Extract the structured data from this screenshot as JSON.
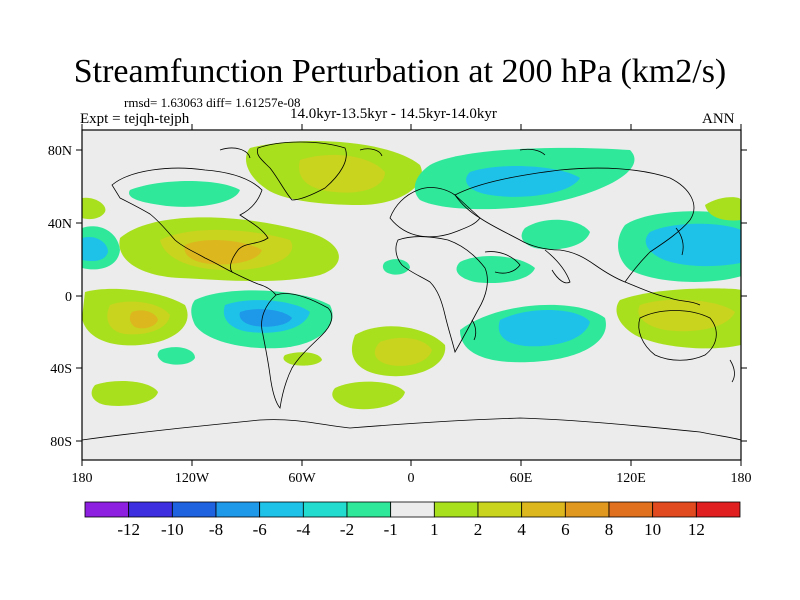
{
  "title": "Streamfunction Perturbation at 200 hPa (km2/s)",
  "stats": "rmsd= 1.63063 diff= 1.61257e-08",
  "expt": "Expt = tejqh-tejph",
  "period": "14.0kyr-13.5kyr - 14.5kyr-14.0kyr",
  "season": "ANN",
  "axes": {
    "lat_ticks": [
      "80N",
      "40N",
      "0",
      "40S",
      "80S"
    ],
    "lon_ticks": [
      "180",
      "120W",
      "60W",
      "0",
      "60E",
      "120E",
      "180"
    ]
  },
  "colorbar": {
    "labels": [
      "-12",
      "-10",
      "-8",
      "-6",
      "-4",
      "-2",
      "-1",
      "1",
      "2",
      "4",
      "6",
      "8",
      "10",
      "12"
    ],
    "colors": [
      "#8c1fe0",
      "#3d2ee0",
      "#1e62e0",
      "#1e98e8",
      "#1ec2e8",
      "#22dccf",
      "#30e89a",
      "#ececec",
      "#a8e01e",
      "#c8d41e",
      "#dcb81e",
      "#e0981e",
      "#e0701e",
      "#e04a1e",
      "#e02020"
    ]
  },
  "colors": {
    "ocean_neutral": "#ececec",
    "coast": "#000000"
  }
}
